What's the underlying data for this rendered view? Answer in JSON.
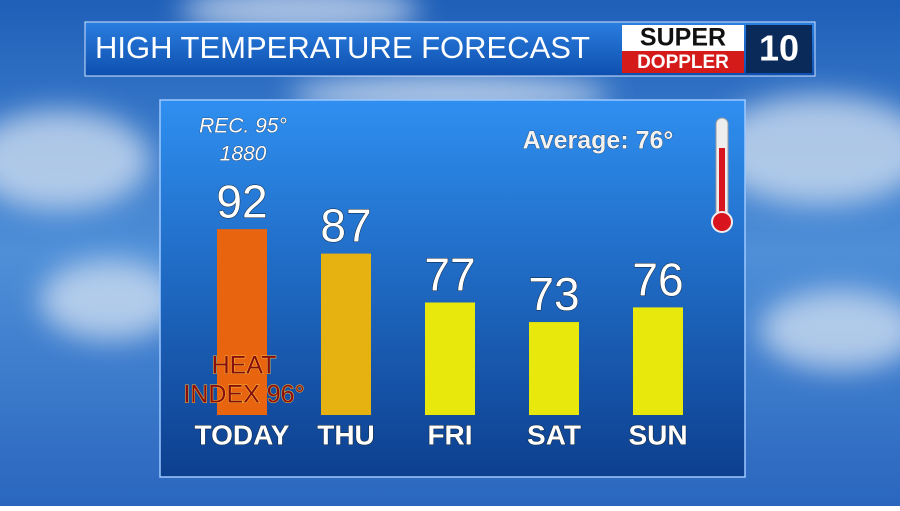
{
  "chart_data": {
    "type": "bar",
    "title": "HIGH TEMPERATURE FORECAST",
    "logo": {
      "line1": "SUPER",
      "line2": "DOPPLER",
      "channel": "10"
    },
    "categories": [
      "TODAY",
      "THU",
      "FRI",
      "SAT",
      "SUN"
    ],
    "values": [
      92,
      87,
      77,
      73,
      76
    ],
    "colors": [
      "#e8640e",
      "#e6b212",
      "#e8e80c",
      "#e8e80c",
      "#e8e80c"
    ],
    "ylim": [
      54,
      100
    ],
    "annotations": {
      "record": "REC. 95°",
      "record_year": "1880",
      "average": "Average: 76°",
      "heat_index_1": "HEAT",
      "heat_index_2": "INDEX 96°"
    }
  }
}
